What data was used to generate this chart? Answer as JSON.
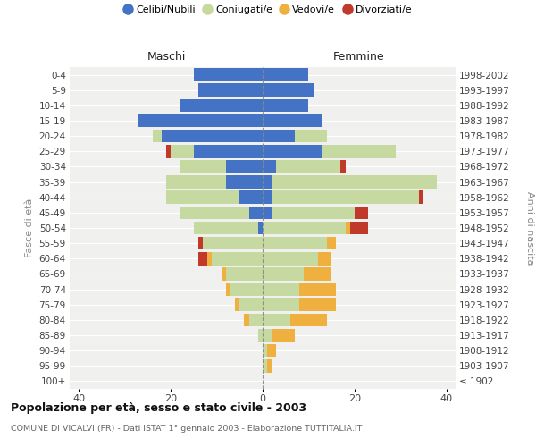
{
  "age_groups": [
    "0-4",
    "5-9",
    "10-14",
    "15-19",
    "20-24",
    "25-29",
    "30-34",
    "35-39",
    "40-44",
    "45-49",
    "50-54",
    "55-59",
    "60-64",
    "65-69",
    "70-74",
    "75-79",
    "80-84",
    "85-89",
    "90-94",
    "95-99",
    "100+"
  ],
  "birth_years": [
    "1998-2002",
    "1993-1997",
    "1988-1992",
    "1983-1987",
    "1978-1982",
    "1973-1977",
    "1968-1972",
    "1963-1967",
    "1958-1962",
    "1953-1957",
    "1948-1952",
    "1943-1947",
    "1938-1942",
    "1933-1937",
    "1928-1932",
    "1923-1927",
    "1918-1922",
    "1913-1917",
    "1908-1912",
    "1903-1907",
    "≤ 1902"
  ],
  "maschi": {
    "celibi": [
      15,
      14,
      18,
      27,
      22,
      15,
      8,
      8,
      5,
      3,
      1,
      0,
      0,
      0,
      0,
      0,
      0,
      0,
      0,
      0,
      0
    ],
    "coniugati": [
      0,
      0,
      0,
      0,
      2,
      5,
      10,
      13,
      16,
      15,
      14,
      13,
      11,
      8,
      7,
      5,
      3,
      1,
      0,
      0,
      0
    ],
    "vedovi": [
      0,
      0,
      0,
      0,
      0,
      0,
      0,
      0,
      0,
      0,
      0,
      0,
      1,
      1,
      1,
      1,
      1,
      0,
      0,
      0,
      0
    ],
    "divorziati": [
      0,
      0,
      0,
      0,
      0,
      1,
      0,
      0,
      0,
      0,
      0,
      1,
      2,
      0,
      0,
      0,
      0,
      0,
      0,
      0,
      0
    ]
  },
  "femmine": {
    "nubili": [
      10,
      11,
      10,
      13,
      7,
      13,
      3,
      2,
      2,
      2,
      0,
      0,
      0,
      0,
      0,
      0,
      0,
      0,
      0,
      0,
      0
    ],
    "coniugate": [
      0,
      0,
      0,
      0,
      7,
      16,
      14,
      36,
      32,
      18,
      18,
      14,
      12,
      9,
      8,
      8,
      6,
      2,
      1,
      1,
      0
    ],
    "vedove": [
      0,
      0,
      0,
      0,
      0,
      0,
      0,
      0,
      0,
      0,
      1,
      2,
      3,
      6,
      8,
      8,
      8,
      5,
      2,
      1,
      0
    ],
    "divorziate": [
      0,
      0,
      0,
      0,
      0,
      0,
      1,
      0,
      1,
      3,
      4,
      0,
      0,
      0,
      0,
      0,
      0,
      0,
      0,
      0,
      0
    ]
  },
  "colors": {
    "celibi": "#4472c4",
    "coniugati": "#c5d9a0",
    "vedovi": "#f0b040",
    "divorziati": "#c0392b"
  },
  "title": "Popolazione per età, sesso e stato civile - 2003",
  "subtitle": "COMUNE DI VICALVI (FR) - Dati ISTAT 1° gennaio 2003 - Elaborazione TUTTITALIA.IT",
  "xlabel_left": "Maschi",
  "xlabel_right": "Femmine",
  "ylabel_left": "Fasce di età",
  "ylabel_right": "Anni di nascita",
  "xlim": 42,
  "background_color": "#ffffff",
  "chart_bg": "#f0f0ee",
  "legend_labels": [
    "Celibi/Nubili",
    "Coniugati/e",
    "Vedovi/e",
    "Divorziati/e"
  ]
}
